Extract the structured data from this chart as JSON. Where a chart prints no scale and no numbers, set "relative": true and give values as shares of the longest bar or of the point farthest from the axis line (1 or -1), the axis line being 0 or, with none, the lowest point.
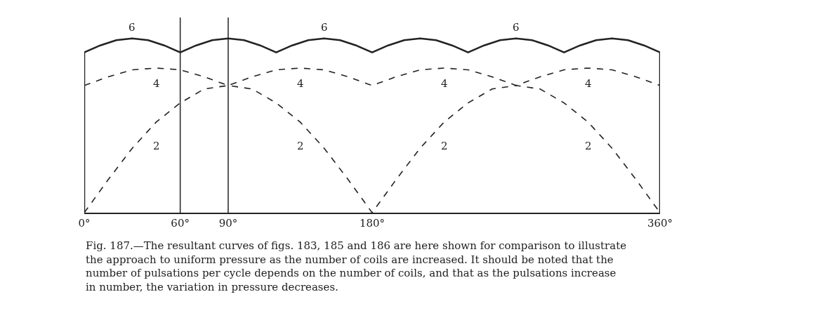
{
  "chart_data": {
    "type": "line",
    "relative": true,
    "legend": false,
    "marker": "none",
    "xlim": [
      0,
      360
    ],
    "xticks": [
      {
        "value": 0,
        "label": "0°"
      },
      {
        "value": 60,
        "label": "60°"
      },
      {
        "value": 90,
        "label": "90°"
      },
      {
        "value": 180,
        "label": "180°"
      },
      {
        "value": 360,
        "label": "360°"
      }
    ],
    "series": [
      {
        "name": "2",
        "color": "#222222",
        "line_style": "dashed",
        "x": [
          0,
          15,
          30,
          45,
          60,
          75,
          90,
          105,
          120,
          135,
          150,
          165,
          180,
          195,
          210,
          225,
          240,
          255,
          270,
          285,
          300,
          315,
          330,
          345,
          360
        ],
        "values": [
          0,
          0.19,
          0.37,
          0.52,
          0.63,
          0.71,
          0.73,
          0.71,
          0.63,
          0.52,
          0.37,
          0.19,
          0,
          0.19,
          0.37,
          0.52,
          0.63,
          0.71,
          0.73,
          0.71,
          0.63,
          0.52,
          0.37,
          0.19,
          0
        ]
      },
      {
        "name": "4",
        "color": "#222222",
        "line_style": "dashed",
        "x": [
          0,
          15,
          30,
          45,
          60,
          75,
          90,
          105,
          120,
          135,
          150,
          165,
          180,
          195,
          210,
          225,
          240,
          255,
          270,
          285,
          300,
          315,
          330,
          345,
          360
        ],
        "values": [
          0.73,
          0.78,
          0.82,
          0.83,
          0.82,
          0.78,
          0.73,
          0.78,
          0.82,
          0.83,
          0.82,
          0.78,
          0.73,
          0.78,
          0.82,
          0.83,
          0.82,
          0.78,
          0.73,
          0.78,
          0.82,
          0.83,
          0.82,
          0.78,
          0.73
        ]
      },
      {
        "name": "6",
        "color": "#222222",
        "line_style": "solid",
        "x": [
          0,
          0,
          10,
          20,
          30,
          40,
          50,
          60,
          70,
          80,
          90,
          100,
          110,
          120,
          130,
          140,
          150,
          160,
          170,
          180,
          190,
          200,
          210,
          220,
          230,
          240,
          250,
          260,
          270,
          280,
          290,
          300,
          310,
          320,
          330,
          340,
          350,
          360,
          360
        ],
        "values": [
          0,
          0.92,
          0.96,
          0.99,
          1.0,
          0.99,
          0.96,
          0.92,
          0.96,
          0.99,
          1.0,
          0.99,
          0.96,
          0.92,
          0.96,
          0.99,
          1.0,
          0.99,
          0.96,
          0.92,
          0.96,
          0.99,
          1.0,
          0.99,
          0.96,
          0.92,
          0.96,
          0.99,
          1.0,
          0.99,
          0.96,
          0.92,
          0.96,
          0.99,
          1.0,
          0.99,
          0.96,
          0.92,
          0
        ]
      }
    ],
    "ref_lines": [
      {
        "axis": "x",
        "value": 60
      },
      {
        "axis": "x",
        "value": 90
      }
    ],
    "annotations": [
      "Fig. 187.—The resultant curves of figs. 183, 185 and 186 are here shown for comparison to illustrate the approach to uniform pressure as the number of coils are increased. It should be noted that the number of pulsations per cycle depends on the number of coils, and that as the pulsations increase in number, the variation in pressure decreases."
    ]
  }
}
